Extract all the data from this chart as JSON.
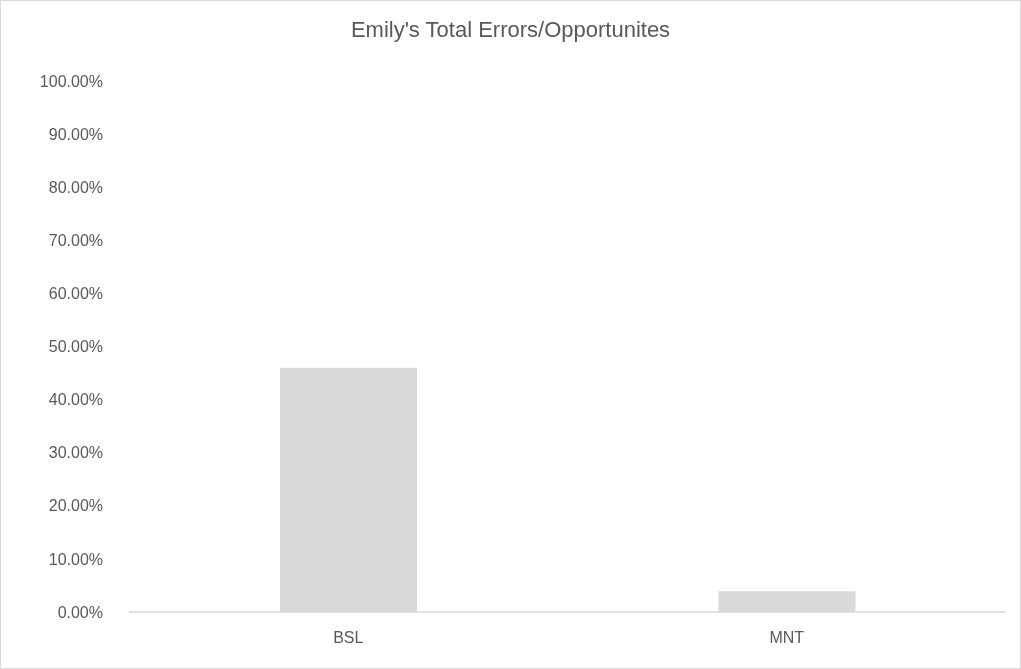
{
  "chart_data": {
    "type": "bar",
    "title": "Emily's Total Errors/Opportunites",
    "categories": [
      "BSL",
      "MNT"
    ],
    "values": [
      46,
      3.9
    ],
    "color": "#d9d9d9",
    "ylim": [
      0,
      100
    ],
    "yticks": [
      {
        "value": 0,
        "label": "0.00%"
      },
      {
        "value": 10,
        "label": "10.00%"
      },
      {
        "value": 20,
        "label": "20.00%"
      },
      {
        "value": 30,
        "label": "30.00%"
      },
      {
        "value": 40,
        "label": "40.00%"
      },
      {
        "value": 50,
        "label": "50.00%"
      },
      {
        "value": 60,
        "label": "60.00%"
      },
      {
        "value": 70,
        "label": "70.00%"
      },
      {
        "value": 80,
        "label": "80.00%"
      },
      {
        "value": 90,
        "label": "90.00%"
      },
      {
        "value": 100,
        "label": "100.00%"
      }
    ],
    "grid": false,
    "legend": false
  }
}
